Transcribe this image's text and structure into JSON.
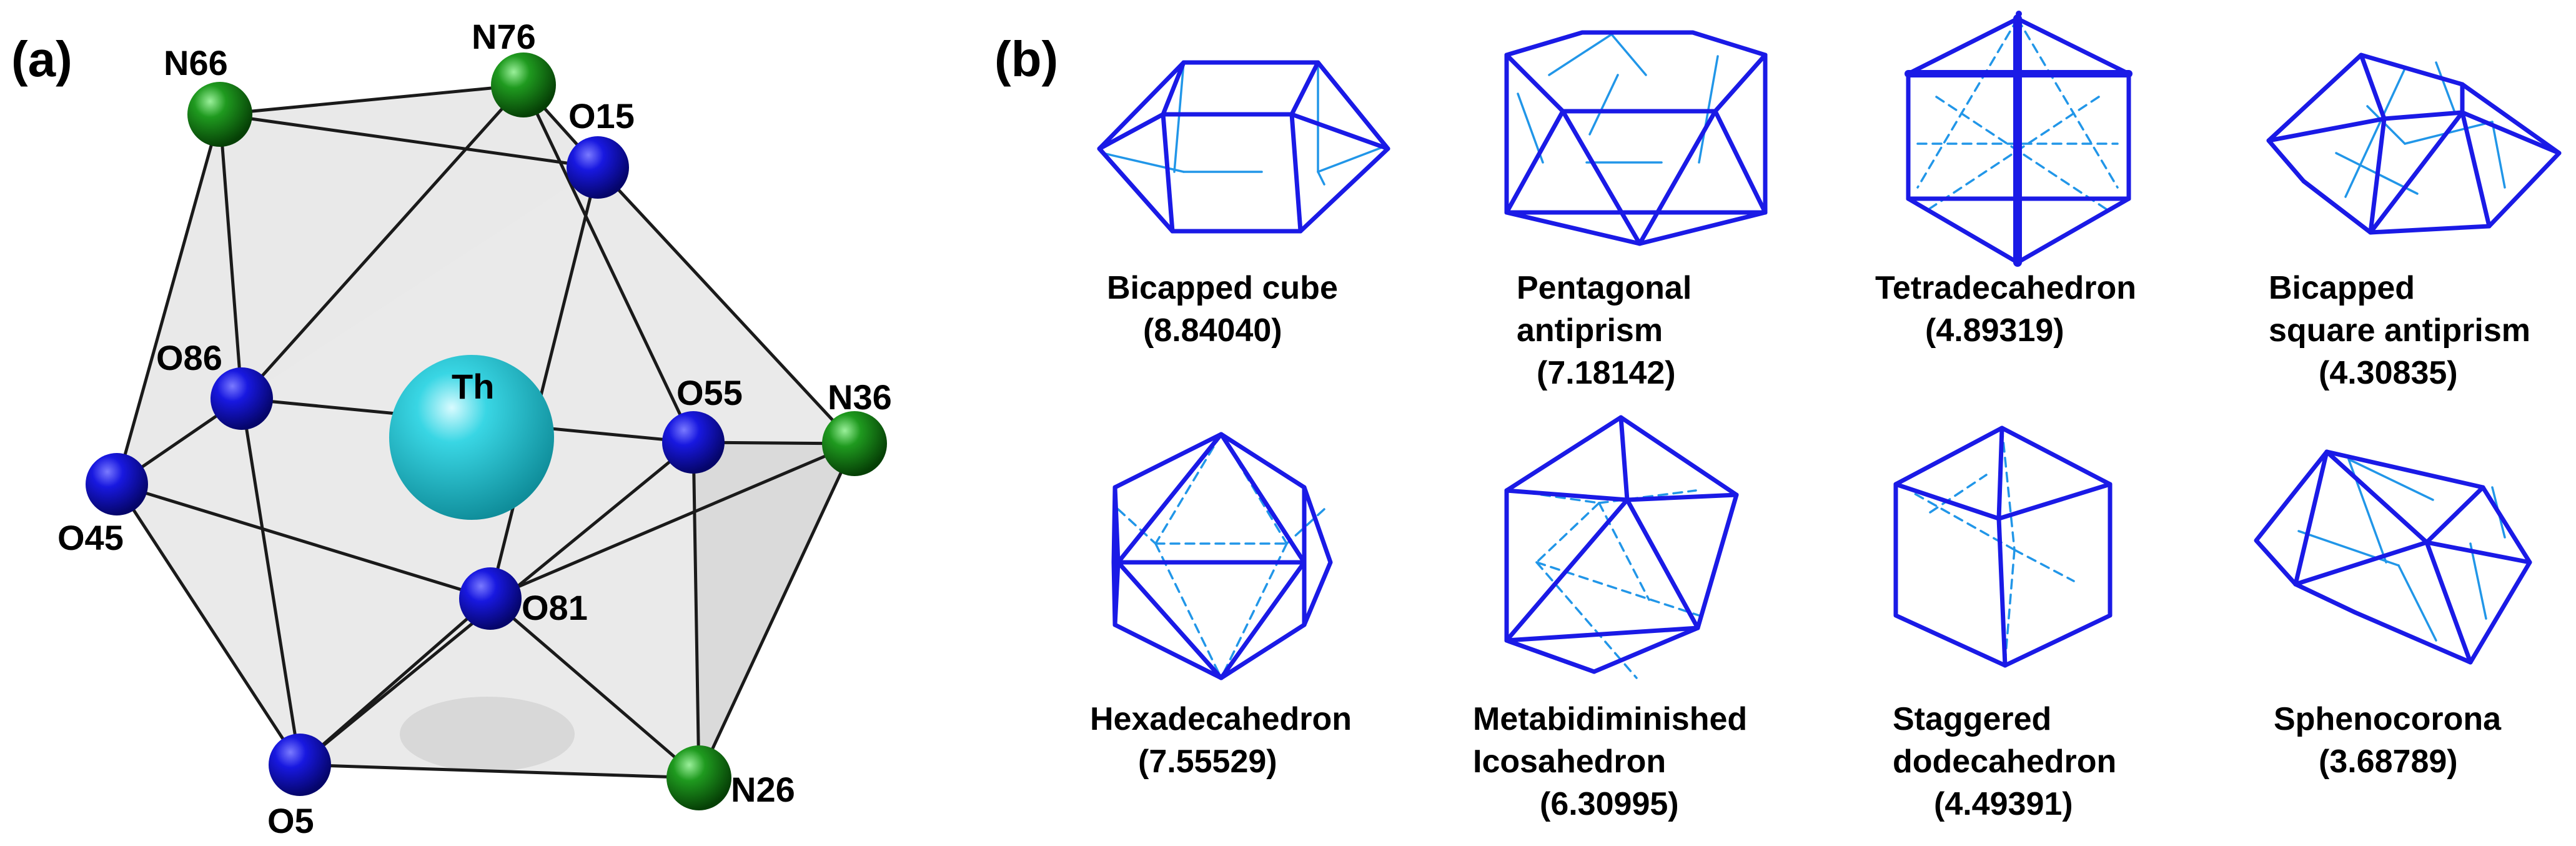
{
  "panels": {
    "a": {
      "letter": "(a)"
    },
    "b": {
      "letter": "(b)"
    }
  },
  "colors": {
    "oxygen": "#1212d8",
    "nitrogen": "#1e9a1e",
    "thorium": "#2cd3e0",
    "polyhedron_edge": "#1a1ae6",
    "polyhedron_hidden": "#2196e8"
  },
  "structure": {
    "center": {
      "symbol": "Th",
      "label": "Th"
    },
    "atoms": [
      {
        "id": "N66",
        "label": "N66",
        "element": "N"
      },
      {
        "id": "N76",
        "label": "N76",
        "element": "N"
      },
      {
        "id": "O15",
        "label": "O15",
        "element": "O"
      },
      {
        "id": "O86",
        "label": "O86",
        "element": "O"
      },
      {
        "id": "O55",
        "label": "O55",
        "element": "O"
      },
      {
        "id": "N36",
        "label": "N36",
        "element": "N"
      },
      {
        "id": "O45",
        "label": "O45",
        "element": "O"
      },
      {
        "id": "O81",
        "label": "O81",
        "element": "O"
      },
      {
        "id": "O5",
        "label": "O5",
        "element": "O"
      },
      {
        "id": "N26",
        "label": "N26",
        "element": "N"
      }
    ]
  },
  "polyhedra": [
    {
      "name_lines": [
        "Bicapped cube"
      ],
      "value": "(8.84040)"
    },
    {
      "name_lines": [
        "Pentagonal",
        "antiprism"
      ],
      "value": "(7.18142)"
    },
    {
      "name_lines": [
        "Tetradecahedron"
      ],
      "value": "(4.89319)"
    },
    {
      "name_lines": [
        "Bicapped",
        "square antiprism"
      ],
      "value": "(4.30835)"
    },
    {
      "name_lines": [
        "Hexadecahedron"
      ],
      "value": "(7.55529)"
    },
    {
      "name_lines": [
        "Metabidiminished",
        "Icosahedron"
      ],
      "value": "(6.30995)"
    },
    {
      "name_lines": [
        "Staggered",
        "dodecahedron"
      ],
      "value": "(4.49391)"
    },
    {
      "name_lines": [
        "Sphenocorona"
      ],
      "value": "(3.68789)"
    }
  ]
}
